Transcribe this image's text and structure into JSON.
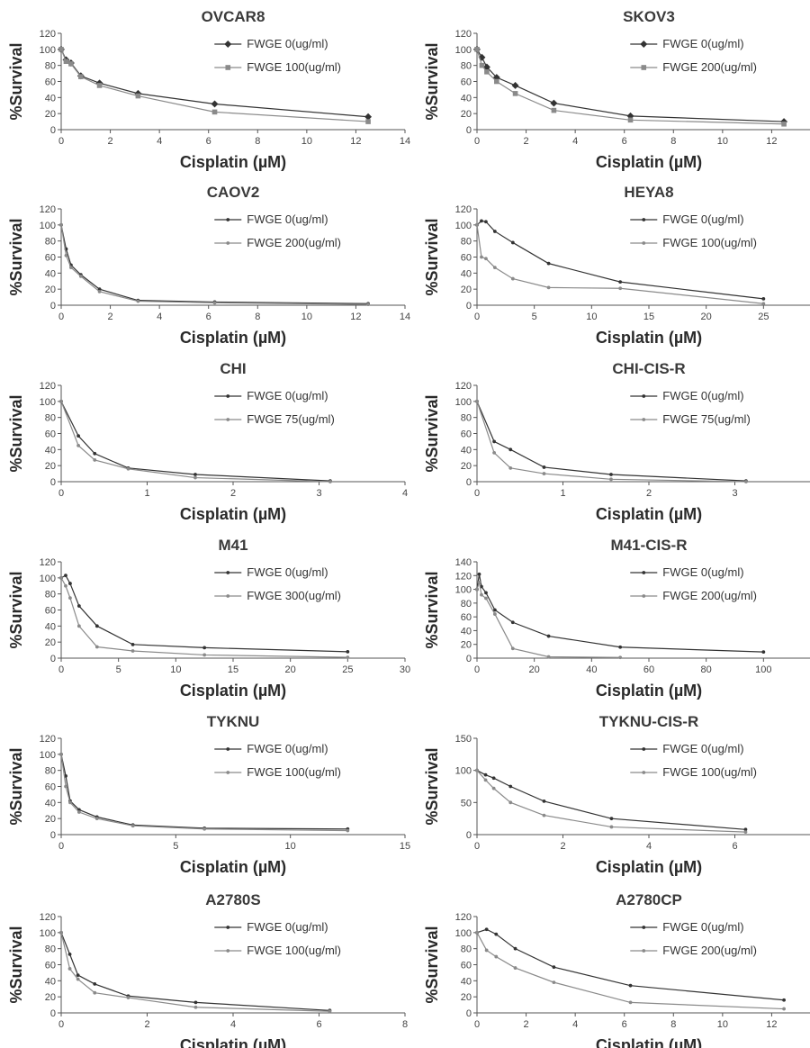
{
  "chart_data": [
    {
      "type": "line",
      "title": "OVCAR8",
      "xlabel": "Cisplatin (µM)",
      "ylabel": "%Survival",
      "xlim": [
        0,
        14
      ],
      "xticks": [
        0,
        2,
        4,
        6,
        8,
        10,
        12,
        14
      ],
      "ylim": [
        0,
        120
      ],
      "yticks": [
        0,
        20,
        40,
        60,
        80,
        100,
        120
      ],
      "legend_position": "top-right",
      "series": [
        {
          "name": "FWGE 0(ug/ml)",
          "marker": "diamond",
          "color": "#333333",
          "x": [
            0,
            0.2,
            0.4,
            0.8,
            1.56,
            3.13,
            6.25,
            12.5
          ],
          "y": [
            100,
            87,
            83,
            67,
            58,
            45,
            32,
            16
          ]
        },
        {
          "name": "FWGE 100(ug/ml)",
          "marker": "square",
          "color": "#8a8a8a",
          "x": [
            0,
            0.2,
            0.4,
            0.8,
            1.56,
            3.13,
            6.25,
            12.5
          ],
          "y": [
            100,
            85,
            82,
            66,
            55,
            42,
            22,
            10
          ]
        }
      ]
    },
    {
      "type": "line",
      "title": "SKOV3",
      "xlabel": "Cisplatin (µM)",
      "ylabel": "%Survival",
      "xlim": [
        0,
        14
      ],
      "xticks": [
        0,
        2,
        4,
        6,
        8,
        10,
        12,
        14
      ],
      "ylim": [
        0,
        120
      ],
      "yticks": [
        0,
        20,
        40,
        60,
        80,
        100,
        120
      ],
      "legend_position": "top-right",
      "series": [
        {
          "name": "FWGE 0(ug/ml)",
          "marker": "diamond",
          "color": "#333333",
          "x": [
            0,
            0.2,
            0.4,
            0.8,
            1.56,
            3.13,
            6.25,
            12.5
          ],
          "y": [
            100,
            90,
            78,
            65,
            55,
            33,
            17,
            10
          ]
        },
        {
          "name": "FWGE 200(ug/ml)",
          "marker": "square",
          "color": "#8a8a8a",
          "x": [
            0,
            0.2,
            0.4,
            0.8,
            1.56,
            3.13,
            6.25,
            12.5
          ],
          "y": [
            100,
            80,
            72,
            60,
            45,
            24,
            12,
            7
          ]
        }
      ]
    },
    {
      "type": "line",
      "title": "CAOV2",
      "xlabel": "Cisplatin (µM)",
      "ylabel": "%Survival",
      "xlim": [
        0,
        14
      ],
      "xticks": [
        0,
        2,
        4,
        6,
        8,
        10,
        12,
        14
      ],
      "ylim": [
        0,
        120
      ],
      "yticks": [
        0,
        20,
        40,
        60,
        80,
        100,
        120
      ],
      "legend_position": "top-right",
      "series": [
        {
          "name": "FWGE 0(ug/ml)",
          "marker": "dot",
          "color": "#333333",
          "x": [
            0,
            0.2,
            0.4,
            0.8,
            1.56,
            3.13,
            6.25,
            12.5
          ],
          "y": [
            100,
            70,
            50,
            38,
            20,
            6,
            4,
            2
          ]
        },
        {
          "name": "FWGE 200(ug/ml)",
          "marker": "dot",
          "color": "#8a8a8a",
          "x": [
            0,
            0.2,
            0.4,
            0.8,
            1.56,
            3.13,
            6.25,
            12.5
          ],
          "y": [
            100,
            62,
            47,
            36,
            17,
            5,
            3,
            1
          ]
        }
      ]
    },
    {
      "type": "line",
      "title": "HEYA8",
      "xlabel": "Cisplatin (µM)",
      "ylabel": "%Survival",
      "xlim": [
        0,
        30
      ],
      "xticks": [
        0,
        5,
        10,
        15,
        20,
        25,
        30
      ],
      "ylim": [
        0,
        120
      ],
      "yticks": [
        0,
        20,
        40,
        60,
        80,
        100,
        120
      ],
      "legend_position": "top-right",
      "series": [
        {
          "name": "FWGE 0(ug/ml)",
          "marker": "dot",
          "color": "#333333",
          "x": [
            0,
            0.39,
            0.78,
            1.56,
            3.13,
            6.25,
            12.5,
            25
          ],
          "y": [
            100,
            105,
            104,
            92,
            78,
            52,
            29,
            8
          ]
        },
        {
          "name": "FWGE 100(ug/ml)",
          "marker": "dot",
          "color": "#8a8a8a",
          "x": [
            0,
            0.39,
            0.78,
            1.56,
            3.13,
            6.25,
            12.5,
            25
          ],
          "y": [
            100,
            60,
            58,
            47,
            33,
            22,
            21,
            2
          ]
        }
      ]
    },
    {
      "type": "line",
      "title": "CHI",
      "xlabel": "Cisplatin (µM)",
      "ylabel": "%Survival",
      "xlim": [
        0,
        4
      ],
      "xticks": [
        0,
        1,
        2,
        3,
        4
      ],
      "ylim": [
        0,
        120
      ],
      "yticks": [
        0,
        20,
        40,
        60,
        80,
        100,
        120
      ],
      "legend_position": "top-right",
      "series": [
        {
          "name": "FWGE 0(ug/ml)",
          "marker": "dot",
          "color": "#333333",
          "x": [
            0,
            0.2,
            0.39,
            0.78,
            1.56,
            3.13
          ],
          "y": [
            100,
            57,
            35,
            17,
            9,
            1
          ]
        },
        {
          "name": "FWGE 75(ug/ml)",
          "marker": "dot",
          "color": "#8a8a8a",
          "x": [
            0,
            0.2,
            0.39,
            0.78,
            1.56,
            3.13
          ],
          "y": [
            100,
            45,
            27,
            16,
            5,
            0
          ]
        }
      ]
    },
    {
      "type": "line",
      "title": "CHI-CIS-R",
      "xlabel": "Cisplatin (µM)",
      "ylabel": "%Survival",
      "xlim": [
        0,
        4
      ],
      "xticks": [
        0,
        1,
        2,
        3,
        4
      ],
      "ylim": [
        0,
        120
      ],
      "yticks": [
        0,
        20,
        40,
        60,
        80,
        100,
        120
      ],
      "legend_position": "top-right",
      "series": [
        {
          "name": "FWGE 0(ug/ml)",
          "marker": "dot",
          "color": "#333333",
          "x": [
            0,
            0.2,
            0.39,
            0.78,
            1.56,
            3.13
          ],
          "y": [
            100,
            50,
            40,
            18,
            9,
            1
          ]
        },
        {
          "name": "FWGE 75(ug/ml)",
          "marker": "dot",
          "color": "#8a8a8a",
          "x": [
            0,
            0.2,
            0.39,
            0.78,
            1.56,
            3.13
          ],
          "y": [
            100,
            36,
            17,
            10,
            3,
            0
          ]
        }
      ]
    },
    {
      "type": "line",
      "title": "M41",
      "xlabel": "Cisplatin (µM)",
      "ylabel": "%Survival",
      "xlim": [
        0,
        30
      ],
      "xticks": [
        0,
        5,
        10,
        15,
        20,
        25,
        30
      ],
      "ylim": [
        0,
        120
      ],
      "yticks": [
        0,
        20,
        40,
        60,
        80,
        100,
        120
      ],
      "legend_position": "top-right",
      "series": [
        {
          "name": "FWGE 0(ug/ml)",
          "marker": "dot",
          "color": "#333333",
          "x": [
            0,
            0.39,
            0.78,
            1.56,
            3.13,
            6.25,
            12.5,
            25
          ],
          "y": [
            100,
            103,
            93,
            65,
            40,
            17,
            13,
            8
          ]
        },
        {
          "name": "FWGE 300(ug/ml)",
          "marker": "dot",
          "color": "#8a8a8a",
          "x": [
            0,
            0.39,
            0.78,
            1.56,
            3.13,
            6.25,
            12.5,
            25
          ],
          "y": [
            100,
            90,
            75,
            40,
            14,
            9,
            4,
            1
          ]
        }
      ]
    },
    {
      "type": "line",
      "title": "M41-CIS-R",
      "xlabel": "Cisplatin (µM)",
      "ylabel": "%Survival",
      "xlim": [
        0,
        120
      ],
      "xticks": [
        0,
        20,
        40,
        60,
        80,
        100,
        120
      ],
      "ylim": [
        0,
        140
      ],
      "yticks": [
        0,
        20,
        40,
        60,
        80,
        100,
        120,
        140
      ],
      "legend_position": "top-right",
      "series": [
        {
          "name": "FWGE 0(ug/ml)",
          "marker": "dot",
          "color": "#333333",
          "x": [
            0,
            0.78,
            1.56,
            3.13,
            6.25,
            12.5,
            25,
            50,
            100
          ],
          "y": [
            100,
            122,
            104,
            95,
            70,
            52,
            32,
            16,
            9
          ]
        },
        {
          "name": "FWGE 200(ug/ml)",
          "marker": "dot",
          "color": "#8a8a8a",
          "x": [
            0,
            0.78,
            1.56,
            3.13,
            6.25,
            12.5,
            25,
            50
          ],
          "y": [
            100,
            110,
            92,
            87,
            64,
            14,
            2,
            1
          ]
        }
      ]
    },
    {
      "type": "line",
      "title": "TYKNU",
      "xlabel": "Cisplatin (µM)",
      "ylabel": "%Survival",
      "xlim": [
        0,
        15
      ],
      "xticks": [
        0,
        5,
        10,
        15
      ],
      "ylim": [
        0,
        120
      ],
      "yticks": [
        0,
        20,
        40,
        60,
        80,
        100,
        120
      ],
      "legend_position": "top-right",
      "series": [
        {
          "name": "FWGE 0(ug/ml)",
          "marker": "dot",
          "color": "#333333",
          "x": [
            0,
            0.2,
            0.39,
            0.78,
            1.56,
            3.13,
            6.25,
            12.5
          ],
          "y": [
            100,
            73,
            42,
            31,
            22,
            12,
            8,
            7
          ]
        },
        {
          "name": "FWGE 100(ug/ml)",
          "marker": "dot",
          "color": "#8a8a8a",
          "x": [
            0,
            0.2,
            0.39,
            0.78,
            1.56,
            3.13,
            6.25,
            12.5
          ],
          "y": [
            100,
            60,
            40,
            28,
            20,
            11,
            7,
            5
          ]
        }
      ]
    },
    {
      "type": "line",
      "title": "TYKNU-CIS-R",
      "xlabel": "Cisplatin (µM)",
      "ylabel": "%Survival",
      "xlim": [
        0,
        8
      ],
      "xticks": [
        0,
        2,
        4,
        6,
        8
      ],
      "ylim": [
        0,
        150
      ],
      "yticks": [
        0,
        50,
        100,
        150
      ],
      "legend_position": "top-right",
      "series": [
        {
          "name": "FWGE 0(ug/ml)",
          "marker": "dot",
          "color": "#333333",
          "x": [
            0,
            0.2,
            0.39,
            0.78,
            1.56,
            3.13,
            6.25
          ],
          "y": [
            100,
            93,
            88,
            75,
            52,
            25,
            8
          ]
        },
        {
          "name": "FWGE 100(ug/ml)",
          "marker": "dot",
          "color": "#8a8a8a",
          "x": [
            0,
            0.2,
            0.39,
            0.78,
            1.56,
            3.13,
            6.25
          ],
          "y": [
            100,
            85,
            72,
            50,
            30,
            12,
            4
          ]
        }
      ]
    },
    {
      "type": "line",
      "title": "A2780S",
      "xlabel": "Cisplatin (µM)",
      "ylabel": "%Survival",
      "xlim": [
        0,
        8
      ],
      "xticks": [
        0,
        2,
        4,
        6,
        8
      ],
      "ylim": [
        0,
        120
      ],
      "yticks": [
        0,
        20,
        40,
        60,
        80,
        100,
        120
      ],
      "legend_position": "top-right",
      "series": [
        {
          "name": "FWGE 0(ug/ml)",
          "marker": "dot",
          "color": "#333333",
          "x": [
            0,
            0.2,
            0.39,
            0.78,
            1.56,
            3.13,
            6.25
          ],
          "y": [
            100,
            73,
            47,
            36,
            21,
            13,
            3
          ]
        },
        {
          "name": "FWGE 100(ug/ml)",
          "marker": "dot",
          "color": "#8a8a8a",
          "x": [
            0,
            0.2,
            0.39,
            0.78,
            1.56,
            3.13,
            6.25
          ],
          "y": [
            100,
            55,
            42,
            25,
            19,
            7,
            2
          ]
        }
      ]
    },
    {
      "type": "line",
      "title": "A2780CP",
      "xlabel": "Cisplatin (µM)",
      "ylabel": "%Survival",
      "xlim": [
        0,
        14
      ],
      "xticks": [
        0,
        2,
        4,
        6,
        8,
        10,
        12,
        14
      ],
      "ylim": [
        0,
        120
      ],
      "yticks": [
        0,
        20,
        40,
        60,
        80,
        100,
        120
      ],
      "legend_position": "top-right",
      "series": [
        {
          "name": "FWGE 0(ug/ml)",
          "marker": "dot",
          "color": "#333333",
          "x": [
            0,
            0.39,
            0.78,
            1.56,
            3.13,
            6.25,
            12.5
          ],
          "y": [
            100,
            104,
            98,
            80,
            57,
            34,
            16
          ]
        },
        {
          "name": "FWGE 200(ug/ml)",
          "marker": "dot",
          "color": "#8a8a8a",
          "x": [
            0,
            0.39,
            0.78,
            1.56,
            3.13,
            6.25,
            12.5
          ],
          "y": [
            100,
            78,
            70,
            56,
            38,
            13,
            5
          ]
        }
      ]
    }
  ]
}
